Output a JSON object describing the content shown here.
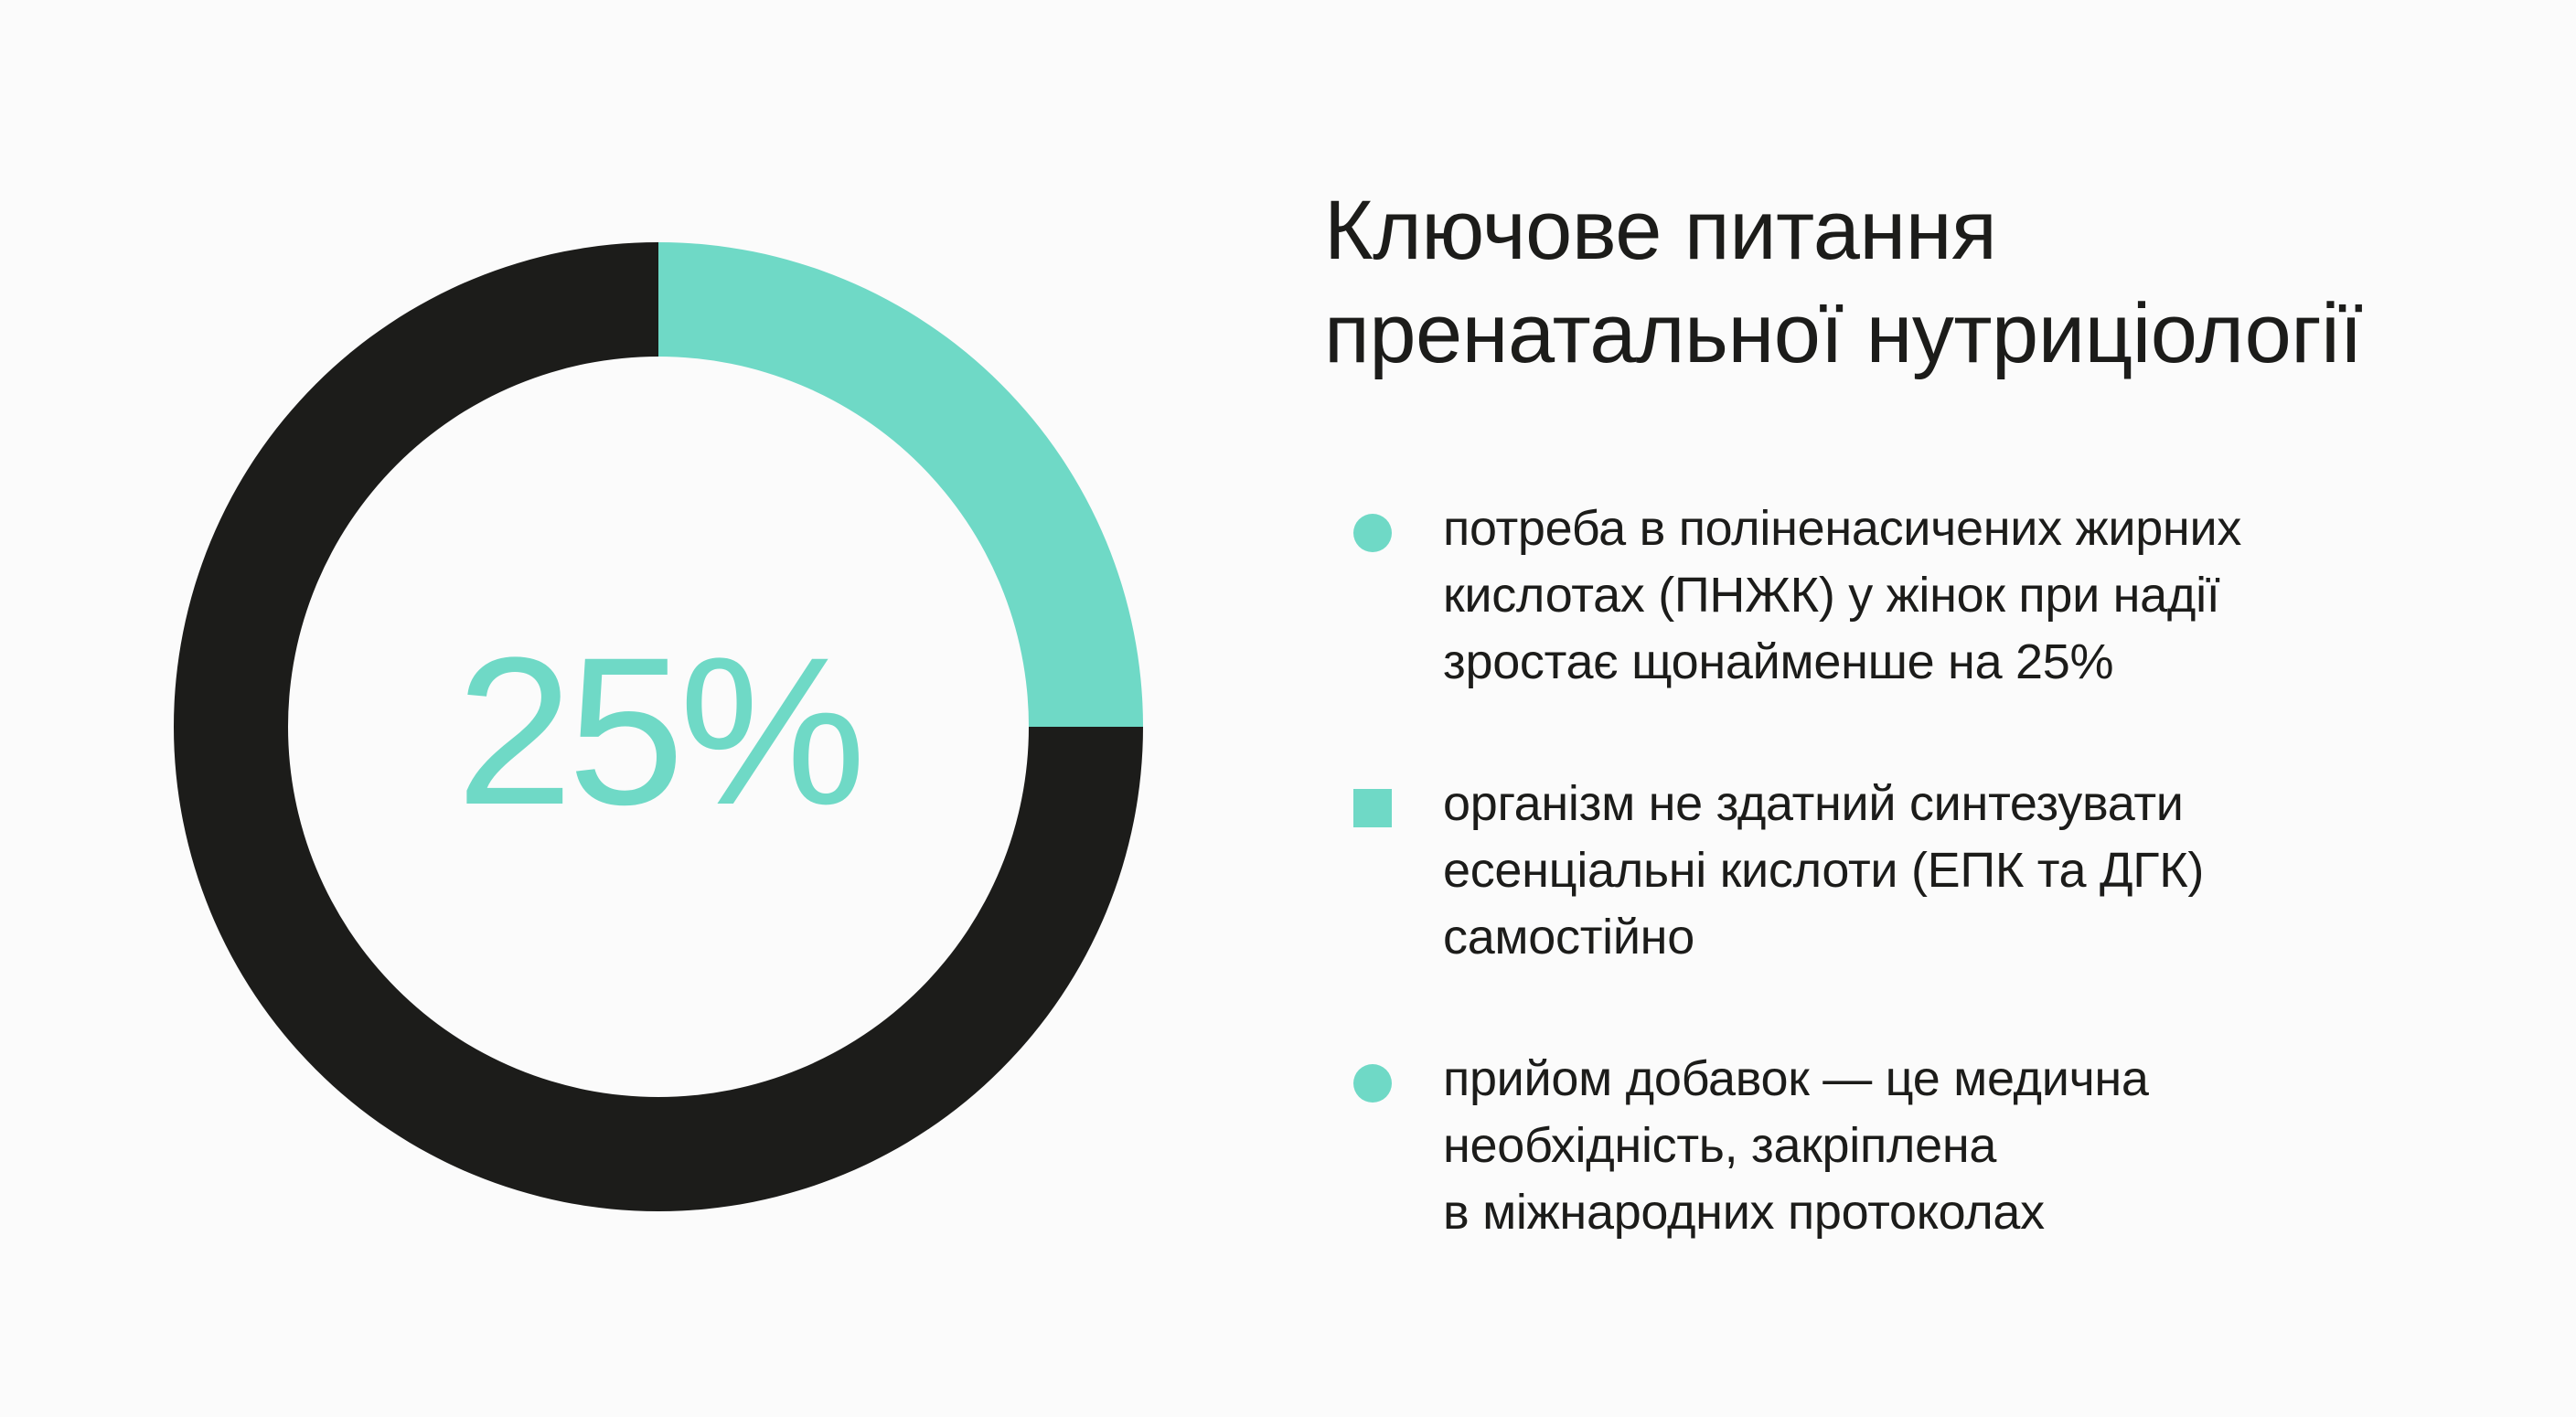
{
  "colors": {
    "background": "#fbfbfb",
    "accent": "#6fd9c6",
    "dark": "#1c1c1a",
    "text": "#1c1c1a"
  },
  "chart_data": {
    "type": "pie",
    "variant": "donut",
    "slices": [
      {
        "value": 25,
        "color": "#6fd9c6"
      },
      {
        "value": 75,
        "color": "#1c1c1a"
      }
    ],
    "center_label": "25%"
  },
  "title": {
    "lines": [
      "Ключове питання",
      "пренатальної нутриціології"
    ]
  },
  "bullets": [
    {
      "marker": "circle",
      "lines": [
        "потреба в поліненасичених жирних",
        "кислотах (ПНЖК) у жінок при надії",
        "зростає щонайменше на 25%"
      ]
    },
    {
      "marker": "square",
      "lines": [
        "організм не здатний синтезувати",
        "есенціальні кислоти (ЕПК та ДГК)",
        "самостійно"
      ]
    },
    {
      "marker": "circle",
      "lines": [
        "прийом добавок — це медична",
        "необхідність, закріплена",
        "в міжнародних протоколах"
      ]
    }
  ]
}
